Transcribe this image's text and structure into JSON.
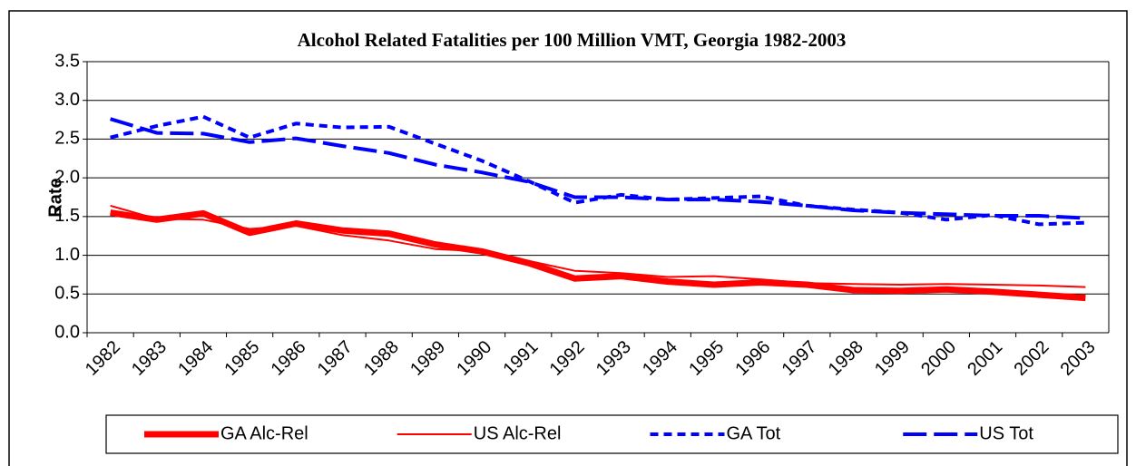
{
  "chart_data": {
    "type": "line",
    "title": "Alcohol Related Fatalities per 100 Million VMT, Georgia 1982-2003",
    "y_label": "Rate",
    "categories": [
      "1982",
      "1983",
      "1984",
      "1985",
      "1986",
      "1987",
      "1988",
      "1989",
      "1990",
      "1991",
      "1992",
      "1993",
      "1994",
      "1995",
      "1996",
      "1997",
      "1998",
      "1999",
      "2000",
      "2001",
      "2002",
      "2003"
    ],
    "series": [
      {
        "name": "GA Alc-Rel",
        "color": "#ff0000",
        "style": "thick",
        "values": [
          1.55,
          1.46,
          1.54,
          1.29,
          1.41,
          1.32,
          1.28,
          1.14,
          1.05,
          0.9,
          0.7,
          0.73,
          0.66,
          0.62,
          0.65,
          0.62,
          0.55,
          0.54,
          0.56,
          0.53,
          0.49,
          0.45
        ]
      },
      {
        "name": "US Alc-Rel",
        "color": "#ff0000",
        "style": "thin",
        "values": [
          1.64,
          1.47,
          1.46,
          1.34,
          1.38,
          1.26,
          1.19,
          1.08,
          1.05,
          0.93,
          0.8,
          0.77,
          0.72,
          0.73,
          0.69,
          0.64,
          0.63,
          0.62,
          0.63,
          0.62,
          0.61,
          0.59
        ]
      },
      {
        "name": "GA Tot",
        "color": "#0000ff",
        "style": "short-dash",
        "values": [
          2.52,
          2.67,
          2.79,
          2.52,
          2.7,
          2.65,
          2.66,
          2.44,
          2.22,
          1.96,
          1.68,
          1.78,
          1.72,
          1.74,
          1.76,
          1.64,
          1.59,
          1.55,
          1.46,
          1.52,
          1.4,
          1.42
        ]
      },
      {
        "name": "US Tot",
        "color": "#0000ff",
        "style": "long-dash",
        "values": [
          2.76,
          2.58,
          2.57,
          2.46,
          2.51,
          2.41,
          2.32,
          2.17,
          2.07,
          1.95,
          1.75,
          1.75,
          1.72,
          1.72,
          1.69,
          1.64,
          1.58,
          1.55,
          1.53,
          1.51,
          1.51,
          1.48
        ]
      }
    ],
    "ylim": [
      0,
      3.5
    ],
    "yticks": [
      {
        "value": 0,
        "label": "0.0"
      },
      0.5,
      {
        "value": 1,
        "label": "1.0"
      },
      1.5,
      {
        "value": 2,
        "label": "2.0"
      },
      2.5,
      {
        "value": 3,
        "label": "3.0"
      },
      3.5
    ],
    "grid": true,
    "legend": "bottom"
  }
}
